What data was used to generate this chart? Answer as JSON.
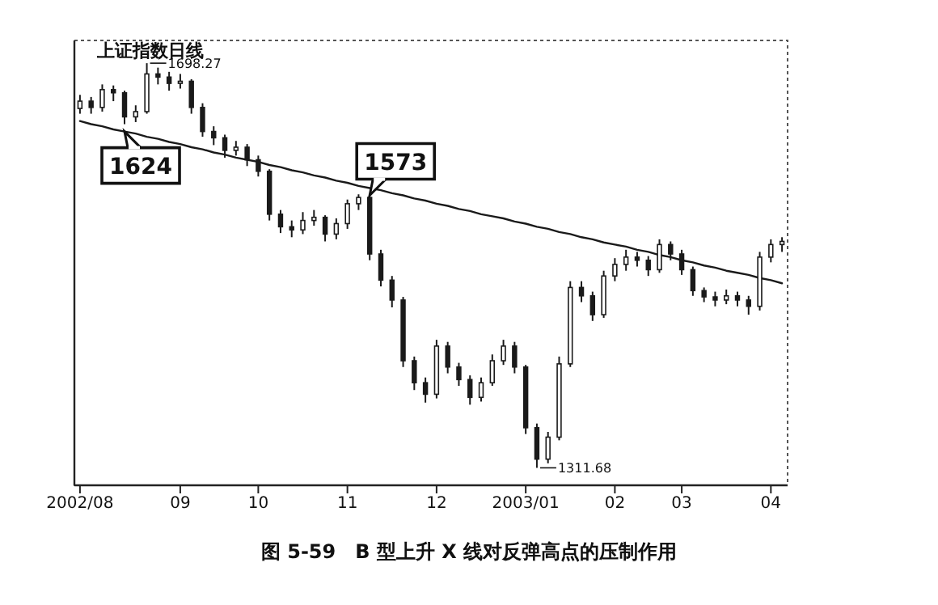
{
  "chart_data": {
    "type": "candlestick",
    "title": "上证指数日线",
    "categories": [
      "2002/08",
      null,
      null,
      null,
      null,
      null,
      null,
      null,
      null,
      "09",
      null,
      null,
      null,
      null,
      null,
      null,
      "10",
      null,
      null,
      null,
      null,
      null,
      null,
      null,
      "11",
      null,
      null,
      null,
      null,
      null,
      null,
      null,
      "12",
      null,
      null,
      null,
      null,
      null,
      null,
      null,
      "2003/01",
      null,
      null,
      null,
      null,
      null,
      null,
      null,
      "02",
      null,
      null,
      null,
      null,
      null,
      "03",
      null,
      null,
      null,
      null,
      null,
      null,
      null,
      "04",
      null
    ],
    "ohlc": [
      [
        1655,
        1668,
        1650,
        1662
      ],
      [
        1662,
        1666,
        1650,
        1656
      ],
      [
        1656,
        1678,
        1652,
        1673
      ],
      [
        1673,
        1677,
        1662,
        1670
      ],
      [
        1670,
        1672,
        1640,
        1647
      ],
      [
        1647,
        1658,
        1642,
        1652
      ],
      [
        1652,
        1698.27,
        1650,
        1688
      ],
      [
        1688,
        1694,
        1678,
        1685
      ],
      [
        1685,
        1690,
        1672,
        1679
      ],
      [
        1679,
        1688,
        1674,
        1681
      ],
      [
        1681,
        1683,
        1650,
        1656
      ],
      [
        1656,
        1660,
        1628,
        1633
      ],
      [
        1633,
        1638,
        1620,
        1627
      ],
      [
        1627,
        1630,
        1608,
        1615
      ],
      [
        1615,
        1624,
        1610,
        1618
      ],
      [
        1618,
        1621,
        1600,
        1606
      ],
      [
        1606,
        1610,
        1590,
        1595
      ],
      [
        1595,
        1597,
        1548,
        1554
      ],
      [
        1554,
        1558,
        1536,
        1542
      ],
      [
        1542,
        1548,
        1532,
        1539
      ],
      [
        1539,
        1556,
        1535,
        1548
      ],
      [
        1548,
        1558,
        1543,
        1551
      ],
      [
        1551,
        1553,
        1528,
        1535
      ],
      [
        1535,
        1550,
        1530,
        1545
      ],
      [
        1545,
        1568,
        1540,
        1564
      ],
      [
        1564,
        1573,
        1558,
        1570
      ],
      [
        1570,
        1572,
        1510,
        1516
      ],
      [
        1516,
        1520,
        1485,
        1491
      ],
      [
        1491,
        1495,
        1465,
        1472
      ],
      [
        1472,
        1475,
        1408,
        1414
      ],
      [
        1414,
        1418,
        1386,
        1393
      ],
      [
        1393,
        1398,
        1374,
        1382
      ],
      [
        1382,
        1434,
        1378,
        1428
      ],
      [
        1428,
        1432,
        1402,
        1408
      ],
      [
        1408,
        1412,
        1390,
        1396
      ],
      [
        1396,
        1400,
        1372,
        1379
      ],
      [
        1379,
        1398,
        1375,
        1393
      ],
      [
        1393,
        1420,
        1390,
        1414
      ],
      [
        1414,
        1434,
        1410,
        1428
      ],
      [
        1428,
        1432,
        1402,
        1408
      ],
      [
        1408,
        1410,
        1344,
        1350
      ],
      [
        1350,
        1354,
        1311.68,
        1320
      ],
      [
        1320,
        1346,
        1316,
        1341
      ],
      [
        1341,
        1418,
        1338,
        1411
      ],
      [
        1411,
        1490,
        1408,
        1484
      ],
      [
        1484,
        1490,
        1470,
        1476
      ],
      [
        1476,
        1480,
        1452,
        1458
      ],
      [
        1458,
        1500,
        1455,
        1495
      ],
      [
        1495,
        1512,
        1490,
        1506
      ],
      [
        1506,
        1520,
        1500,
        1513
      ],
      [
        1513,
        1518,
        1504,
        1510
      ],
      [
        1510,
        1514,
        1495,
        1501
      ],
      [
        1501,
        1530,
        1498,
        1525
      ],
      [
        1525,
        1528,
        1510,
        1516
      ],
      [
        1516,
        1520,
        1496,
        1501
      ],
      [
        1501,
        1504,
        1476,
        1481
      ],
      [
        1481,
        1484,
        1470,
        1475
      ],
      [
        1475,
        1480,
        1466,
        1472
      ],
      [
        1472,
        1482,
        1468,
        1476
      ],
      [
        1476,
        1480,
        1466,
        1472
      ],
      [
        1472,
        1476,
        1458,
        1466
      ],
      [
        1466,
        1518,
        1462,
        1513
      ],
      [
        1513,
        1530,
        1508,
        1525
      ],
      [
        1525,
        1532,
        1518,
        1528
      ]
    ],
    "color": "#1a1a1a",
    "series": [
      {
        "type": "line",
        "color": "#1a1a1a",
        "values": [
          1643,
          1640,
          1638,
          1635,
          1633,
          1631,
          1628,
          1626,
          1623,
          1621,
          1618,
          1616,
          1613,
          1611,
          1608,
          1606,
          1604,
          1601,
          1599,
          1596,
          1594,
          1591,
          1589,
          1586,
          1584,
          1581,
          1579,
          1577,
          1574,
          1572,
          1569,
          1567,
          1564,
          1562,
          1559,
          1557,
          1554,
          1552,
          1550,
          1547,
          1545,
          1542,
          1540,
          1537,
          1535,
          1532,
          1530,
          1527,
          1525,
          1523,
          1520,
          1518,
          1515,
          1513,
          1510,
          1508,
          1505,
          1503,
          1500,
          1498,
          1496,
          1493,
          1491,
          1488
        ]
      }
    ],
    "ylim": [
      1295,
      1720
    ],
    "tick_labels": "x",
    "annotations": [
      "1698.27",
      "1311.68",
      "1624",
      "1573",
      "图 5-59　B 型上升 X 线对反弹高点的压制作用"
    ]
  }
}
